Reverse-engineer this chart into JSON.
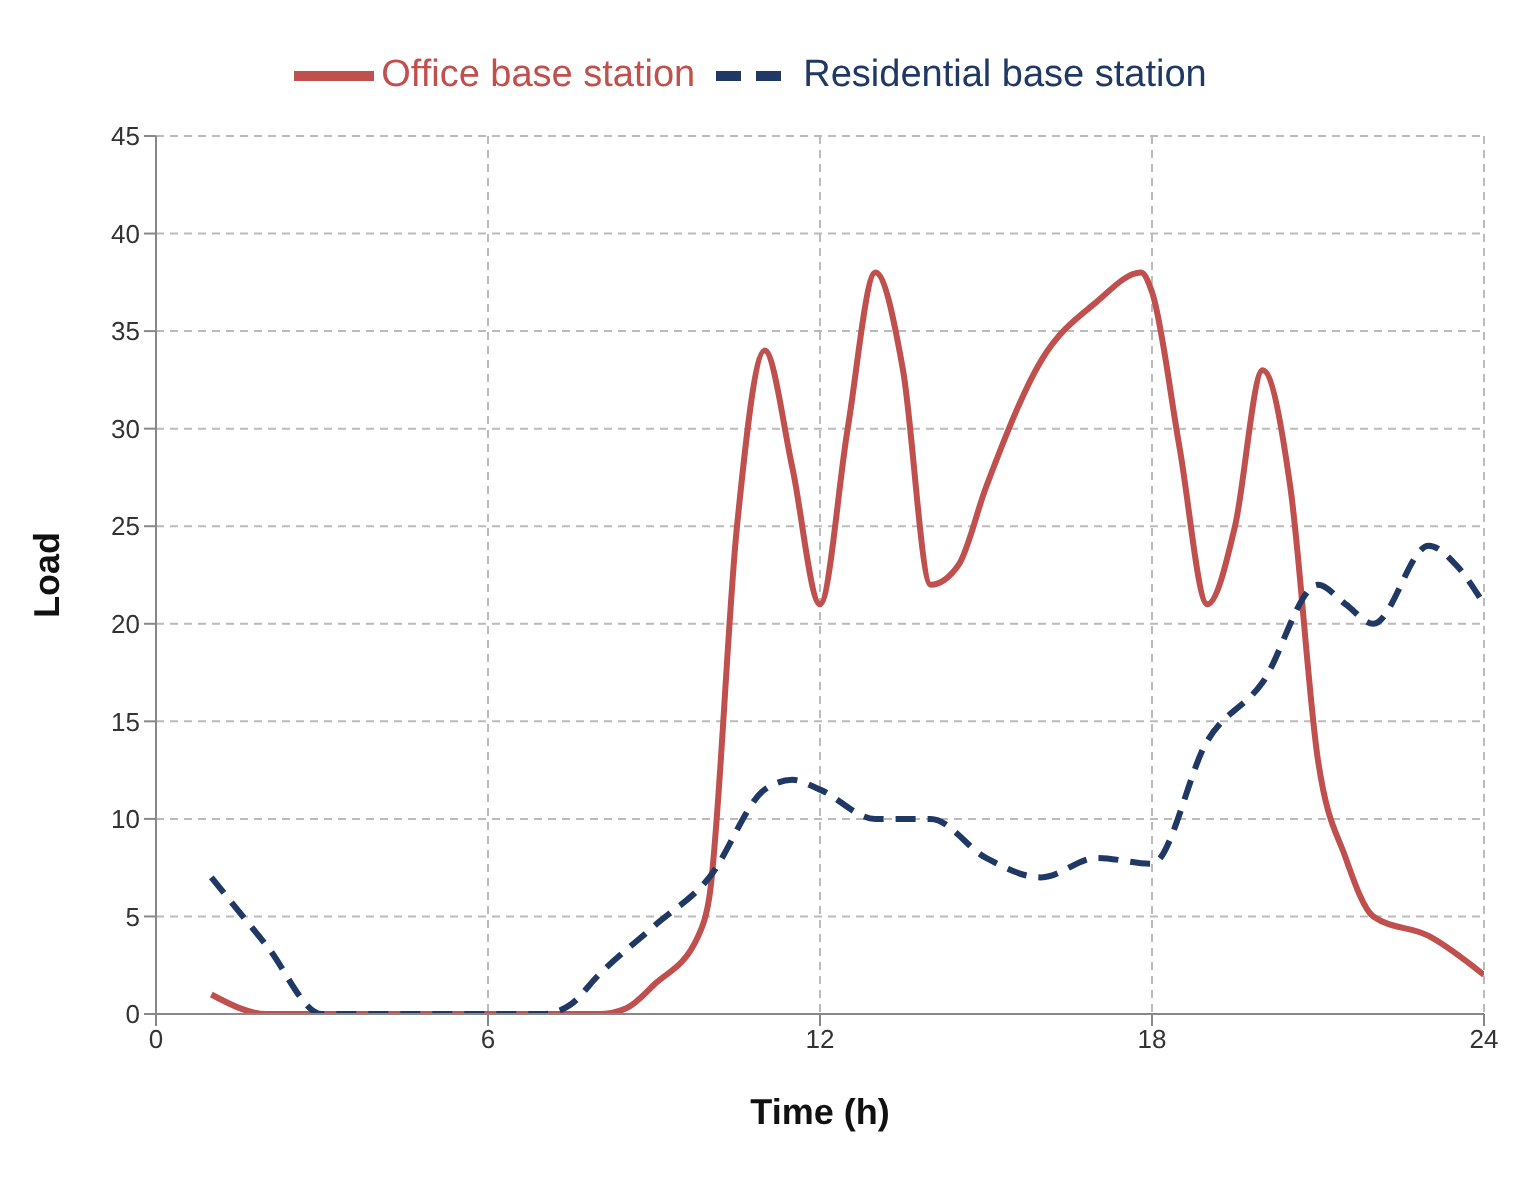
{
  "chart_data": {
    "type": "line",
    "xlabel": "Time (h)",
    "ylabel": "Load",
    "xlim": [
      0,
      24
    ],
    "xticks": [
      0,
      6,
      12,
      18,
      24
    ],
    "ylim": [
      0,
      45
    ],
    "yticks": [
      0,
      5,
      10,
      15,
      20,
      25,
      30,
      35,
      40,
      45
    ],
    "grid": true,
    "legend": "top",
    "marker": "none",
    "series": [
      {
        "name": "Office base station",
        "color": "#c0504d",
        "line_style": "solid",
        "x": [
          1,
          2,
          3,
          4,
          5,
          6,
          7,
          8,
          8.5,
          9,
          9.8,
          10,
          10.5,
          11,
          11.5,
          12,
          12.5,
          13,
          13.5,
          14,
          14.5,
          15,
          16,
          17,
          17.8,
          18,
          18.5,
          19,
          19.5,
          20,
          20.5,
          21,
          21.5,
          22,
          23,
          24
        ],
        "values": [
          1,
          0,
          0,
          0,
          0,
          0,
          0,
          0,
          0.3,
          1.5,
          4,
          6,
          25,
          34,
          28,
          21,
          30,
          38,
          33,
          22,
          23,
          27,
          33.5,
          36.5,
          38,
          37,
          29,
          21,
          25,
          33,
          27,
          13,
          8,
          5,
          4,
          2
        ]
      },
      {
        "name": "Residential base station",
        "color": "#1f3864",
        "line_style": "dashed",
        "x": [
          1,
          2,
          3,
          4,
          5,
          6,
          7,
          7.5,
          8,
          9,
          10,
          11,
          11.5,
          12,
          13,
          14,
          15,
          16,
          17,
          18,
          19,
          20,
          21,
          21.5,
          22,
          23,
          23.5,
          24
        ],
        "values": [
          7,
          3.5,
          0,
          0,
          0,
          0,
          0,
          0.5,
          2,
          4.5,
          7,
          11.5,
          12,
          11.5,
          10,
          10,
          8,
          7,
          8,
          7.7,
          14,
          17,
          22,
          21,
          20,
          24,
          23,
          21
        ]
      }
    ]
  }
}
